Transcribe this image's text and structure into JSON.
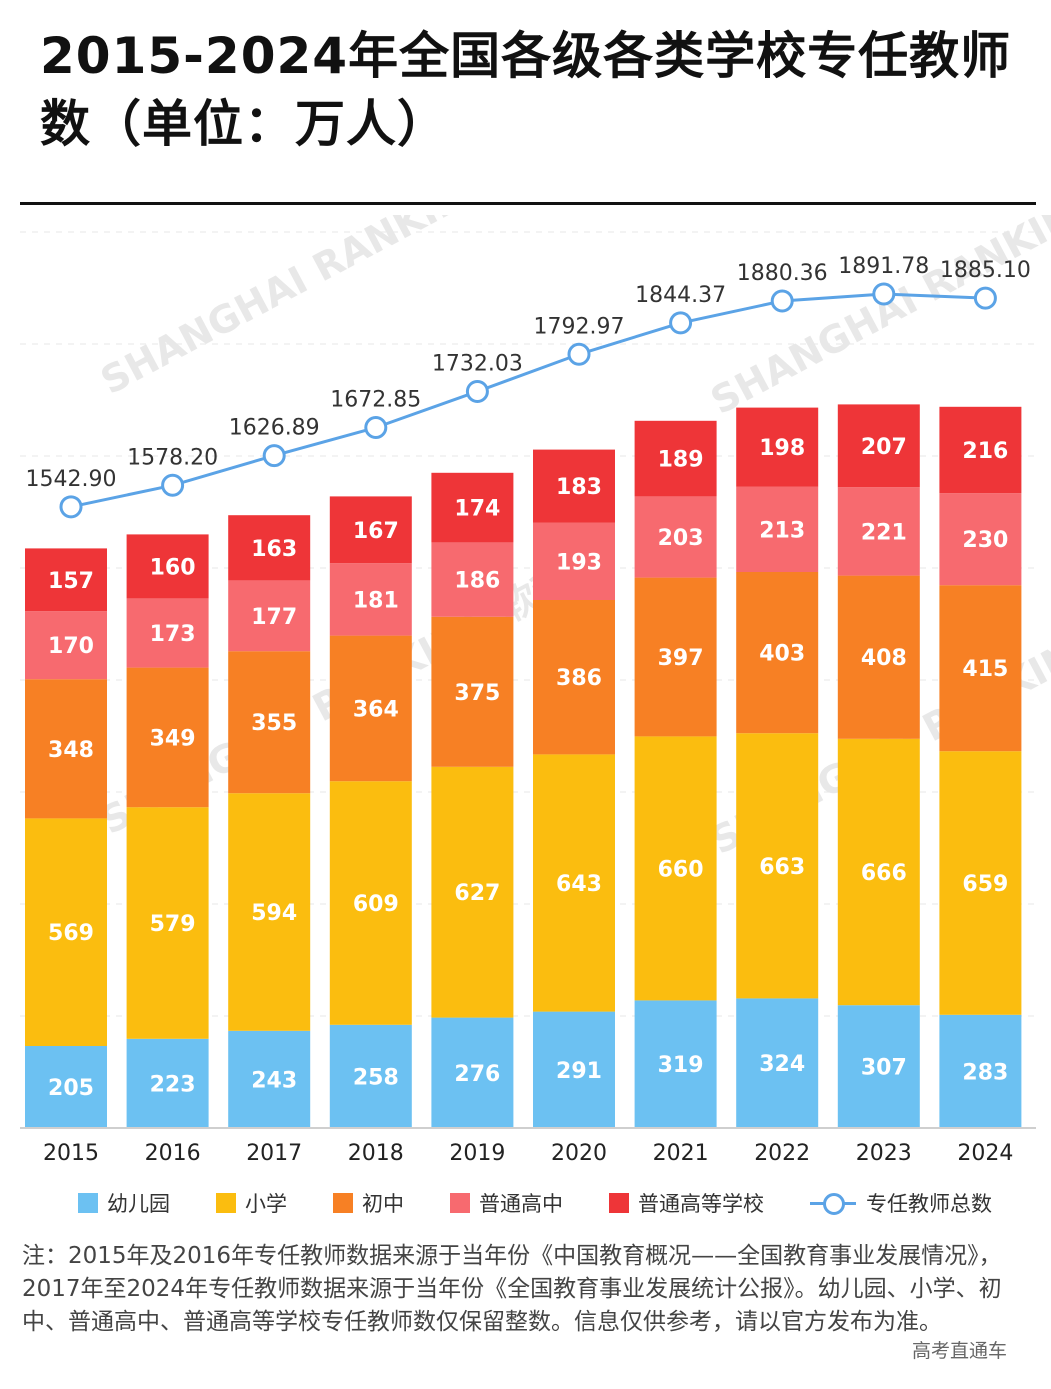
{
  "title": "2015-2024年全国各级各类学校专任教师数（单位：万人）",
  "chart_data": {
    "type": "bar",
    "stacked": true,
    "categories": [
      "2015",
      "2016",
      "2017",
      "2018",
      "2019",
      "2020",
      "2021",
      "2022",
      "2023",
      "2024"
    ],
    "series": [
      {
        "name": "幼儿园",
        "color": "#6cc1f2",
        "values": [
          205,
          223,
          243,
          258,
          276,
          291,
          319,
          324,
          307,
          283
        ]
      },
      {
        "name": "小学",
        "color": "#fbbd0f",
        "values": [
          569,
          579,
          594,
          609,
          627,
          643,
          660,
          663,
          666,
          659
        ]
      },
      {
        "name": "初中",
        "color": "#f78024",
        "values": [
          348,
          349,
          355,
          364,
          375,
          386,
          397,
          403,
          408,
          415
        ]
      },
      {
        "name": "普通高中",
        "color": "#f76a6f",
        "values": [
          170,
          173,
          177,
          181,
          186,
          193,
          203,
          213,
          221,
          230
        ]
      },
      {
        "name": "普通高等学校",
        "color": "#ee3538",
        "values": [
          157,
          160,
          163,
          167,
          174,
          183,
          189,
          198,
          207,
          216
        ]
      }
    ],
    "line_series": {
      "name": "专任教师总数",
      "color": "#5ba3e6",
      "values": [
        1542.9,
        1578.2,
        1626.89,
        1672.85,
        1732.03,
        1792.97,
        1844.37,
        1880.36,
        1891.78,
        1885.1
      ],
      "labels": [
        "1542.90",
        "1578.20",
        "1626.89",
        "1672.85",
        "1732.03",
        "1792.97",
        "1844.37",
        "1880.36",
        "1891.78",
        "1885.10"
      ]
    },
    "grid": true,
    "legend_position": "bottom"
  },
  "watermark": "SHANGHAI RANKING 软科",
  "note": "注：2015年及2016年专任教师数据来源于当年份《中国教育概况——全国教育事业发展情况》，2017年至2024年专任教师数据来源于当年份《全国教育事业发展统计公报》。幼儿园、小学、初中、普通高中、普通高等学校专任教师数仅保留整数。信息仅供参考，请以官方发布为准。",
  "source": "高考直通车"
}
